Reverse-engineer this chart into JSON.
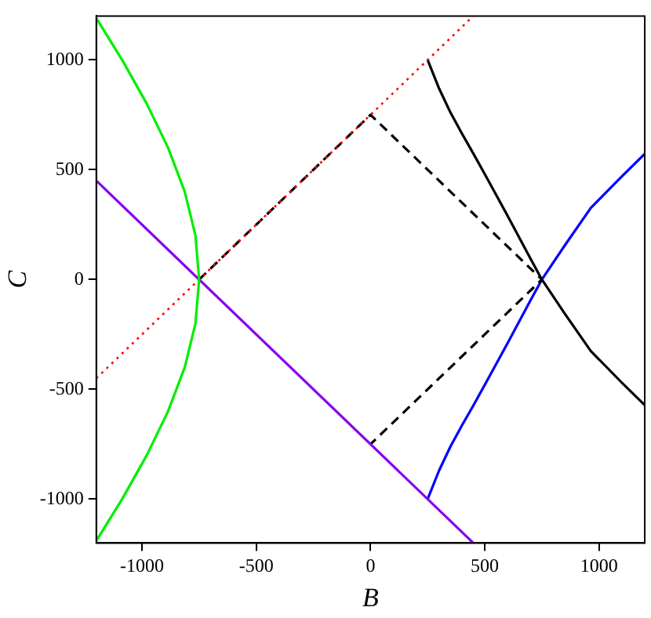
{
  "chart_data": {
    "type": "line",
    "xlabel": "B",
    "ylabel": "C",
    "xlim": [
      -1200,
      1200
    ],
    "ylim": [
      -1200,
      1200
    ],
    "xticks": [
      -1000,
      -500,
      0,
      500,
      1000
    ],
    "yticks": [
      -1000,
      -500,
      0,
      500,
      1000
    ],
    "grid": false,
    "legend": false,
    "marker": "none",
    "series": [
      {
        "color": "#00ee00",
        "x": [
          -1200,
          -1087,
          -979,
          -886,
          -813,
          -766,
          -750,
          -766,
          -813,
          -886,
          -979,
          -1087,
          -1200
        ],
        "values": [
          1190,
          1000,
          800,
          600,
          400,
          200,
          0,
          -200,
          -400,
          -600,
          -800,
          -1000,
          -1190
        ]
      },
      {
        "color": "#8800ee",
        "x": [
          -1200,
          450
        ],
        "values": [
          450,
          -1200
        ]
      },
      {
        "color": "#ff0000",
        "line_style": "dotted",
        "x": [
          -1200,
          450
        ],
        "values": [
          -450,
          1200
        ]
      },
      {
        "color": "#000000",
        "line_style": "dashed",
        "x": [
          -750,
          0,
          750,
          0
        ],
        "values": [
          0,
          750,
          0,
          -750
        ]
      },
      {
        "color": "#000000",
        "x": [
          250,
          300,
          350,
          400,
          453,
          500,
          600,
          700,
          750,
          850,
          964,
          1100,
          1200
        ],
        "values": [
          1000,
          870,
          760,
          665,
          568,
          480,
          290,
          95,
          0,
          -155,
          -326,
          -470,
          -572
        ]
      },
      {
        "color": "#0000ff",
        "x": [
          250,
          300,
          350,
          400,
          453,
          500,
          600,
          700,
          750,
          850,
          964,
          1100,
          1200
        ],
        "values": [
          -1000,
          -870,
          -760,
          -665,
          -568,
          -480,
          -290,
          -95,
          0,
          155,
          326,
          470,
          572
        ]
      }
    ]
  }
}
